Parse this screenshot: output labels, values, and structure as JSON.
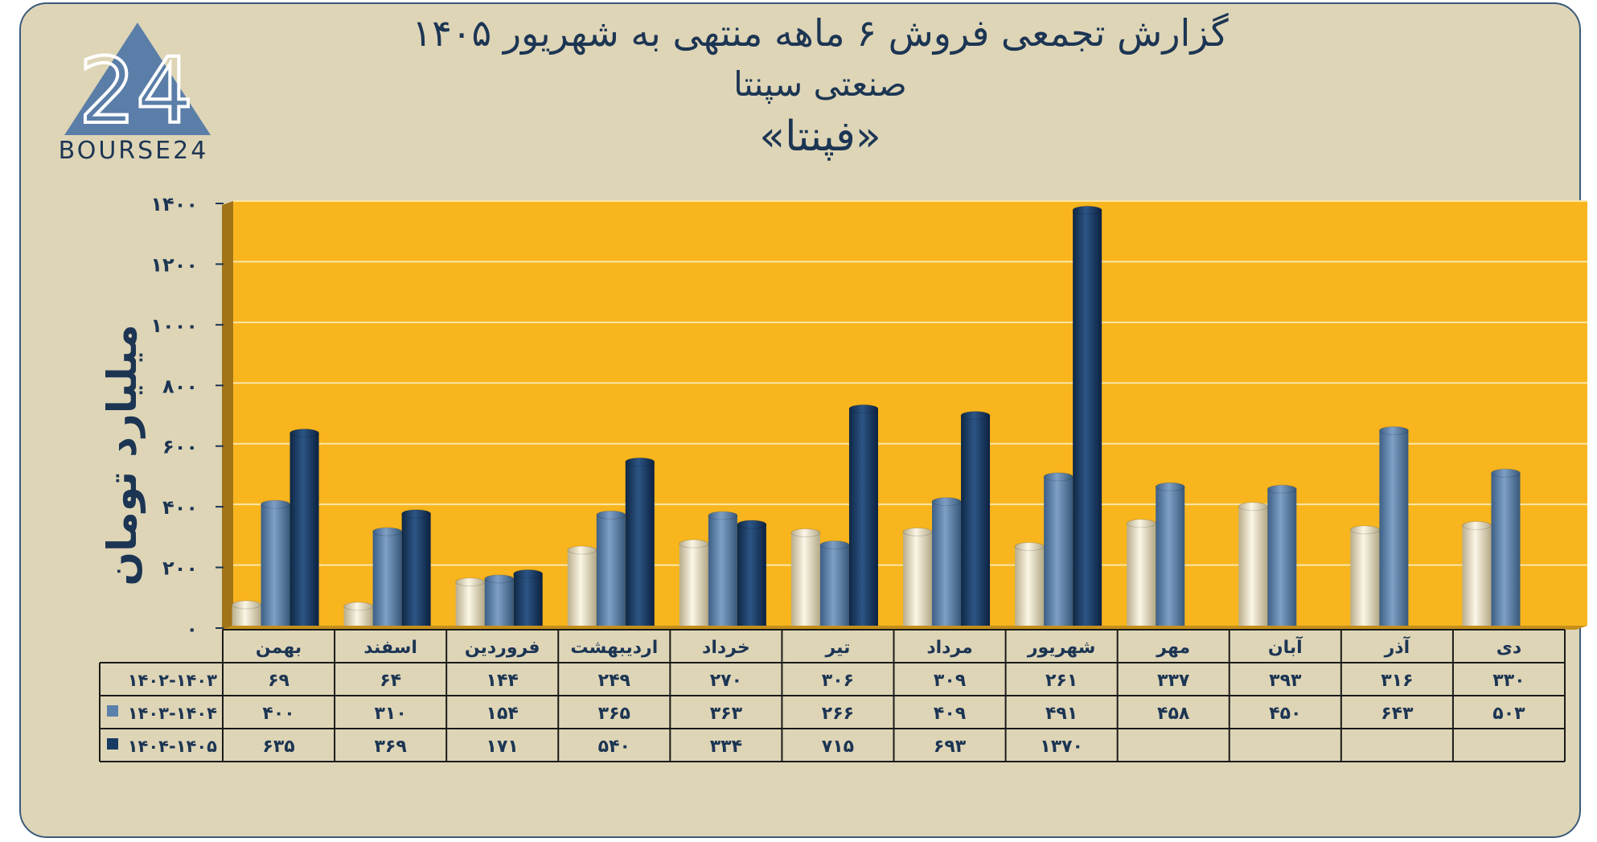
{
  "header": {
    "title_line1": "گزارش تجمعی فروش ۶ ماهه منتهی به شهریور ۱۴۰۵",
    "title_line2": "صنعتی سپنتا",
    "title_line3": "«فپنتا»"
  },
  "logo": {
    "mark": "24",
    "text": "BOURSE24"
  },
  "chart_data": {
    "type": "bar",
    "ylabel": "میلیارد تومان",
    "ylim": [
      0,
      1400
    ],
    "yticks": [
      0,
      200,
      400,
      600,
      800,
      1000,
      1200,
      1400
    ],
    "ytick_labels": [
      "۰",
      "۲۰۰",
      "۴۰۰",
      "۶۰۰",
      "۸۰۰",
      "۱۰۰۰",
      "۱۲۰۰",
      "۱۴۰۰"
    ],
    "grid": true,
    "categories": [
      "بهمن",
      "اسفند",
      "فروردین",
      "اردیبهشت",
      "خرداد",
      "تیر",
      "مرداد",
      "شهریور",
      "مهر",
      "آبان",
      "آذر",
      "دی"
    ],
    "series": [
      {
        "name": "۱۴۰۲-۱۴۰۳",
        "color": "#ece4c8",
        "values": [
          69,
          64,
          144,
          249,
          270,
          306,
          309,
          261,
          337,
          393,
          316,
          330
        ],
        "labels": [
          "۶۹",
          "۶۴",
          "۱۴۴",
          "۲۴۹",
          "۲۷۰",
          "۳۰۶",
          "۳۰۹",
          "۲۶۱",
          "۳۳۷",
          "۳۹۳",
          "۳۱۶",
          "۳۳۰"
        ]
      },
      {
        "name": "۱۴۰۳-۱۴۰۴",
        "color": "#5b80ab",
        "values": [
          400,
          310,
          154,
          365,
          363,
          266,
          409,
          491,
          458,
          450,
          643,
          503
        ],
        "labels": [
          "۴۰۰",
          "۳۱۰",
          "۱۵۴",
          "۳۶۵",
          "۳۶۳",
          "۲۶۶",
          "۴۰۹",
          "۴۹۱",
          "۴۵۸",
          "۴۵۰",
          "۶۴۳",
          "۵۰۳"
        ]
      },
      {
        "name": "۱۴۰۴-۱۴۰۵",
        "color": "#173a63",
        "values": [
          635,
          369,
          171,
          540,
          334,
          715,
          693,
          1370,
          null,
          null,
          null,
          null
        ],
        "labels": [
          "۶۳۵",
          "۳۶۹",
          "۱۷۱",
          "۵۴۰",
          "۳۳۴",
          "۷۱۵",
          "۶۹۳",
          "۱۳۷۰",
          "",
          "",
          "",
          ""
        ]
      }
    ]
  },
  "colors": {
    "plot_bg": "#f8b51e",
    "card_bg": "#ded5b7",
    "text": "#1c3553",
    "border": "#3a5a7a"
  }
}
